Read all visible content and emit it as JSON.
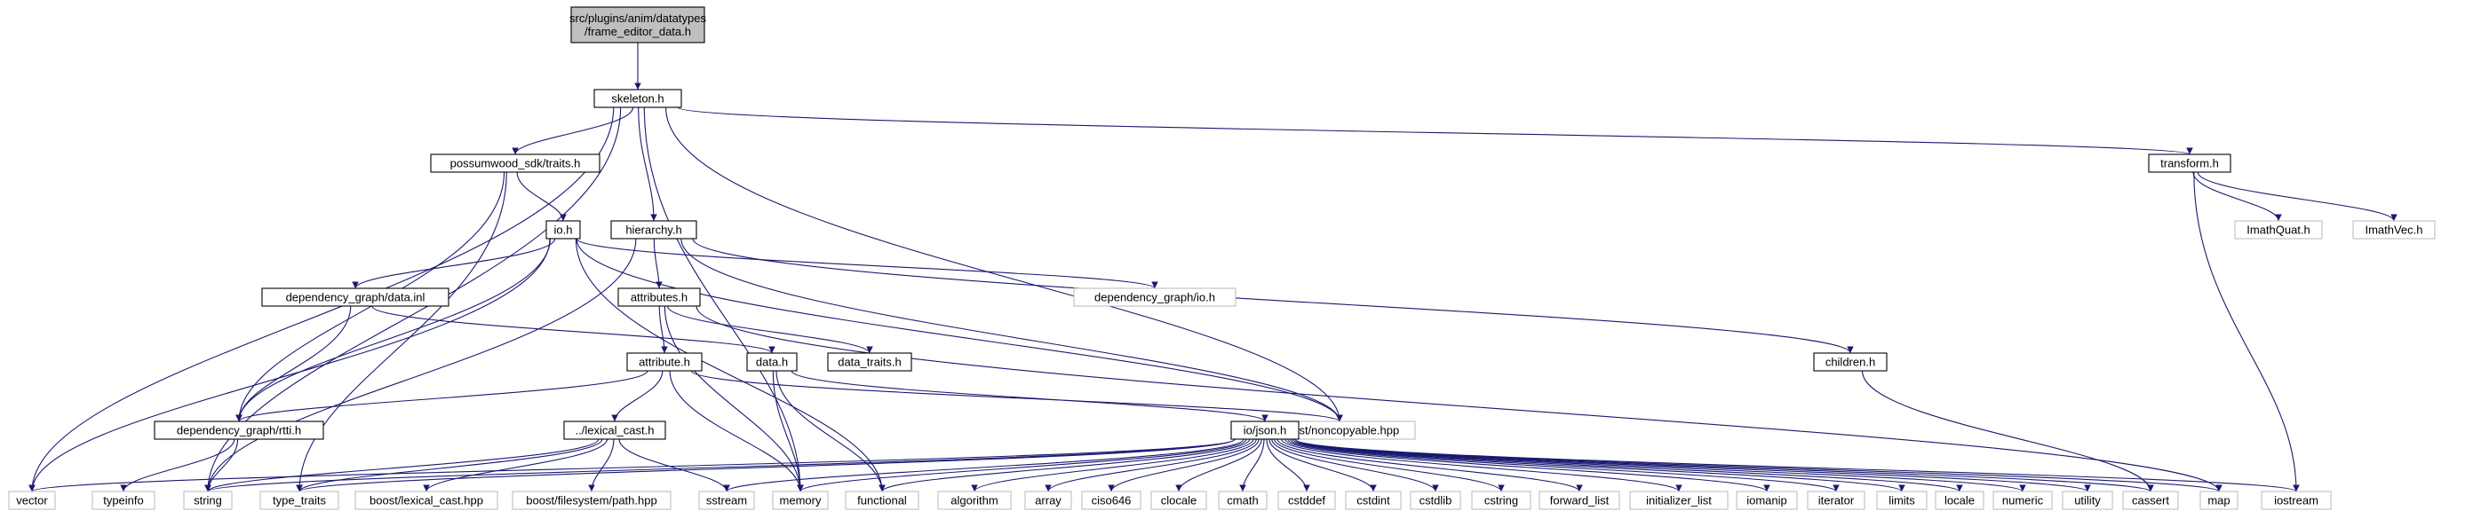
{
  "diagram": {
    "kind": "include-dependency-graph",
    "colors": {
      "edge": "#191970",
      "root_fill": "#bfbfbf",
      "node_border": "#000000",
      "external_border": "#bfbfbf",
      "background": "#ffffff"
    },
    "nodes": [
      {
        "id": "root",
        "label": "src/plugins/anim/datatypes\n/frame_editor_data.h",
        "kind": "root"
      },
      {
        "id": "skeleton",
        "label": "skeleton.h",
        "kind": "header"
      },
      {
        "id": "sdk_traits",
        "label": "possumwood_sdk/traits.h",
        "kind": "header"
      },
      {
        "id": "transform",
        "label": "transform.h",
        "kind": "header"
      },
      {
        "id": "io_h",
        "label": "io.h",
        "kind": "header"
      },
      {
        "id": "hierarchy",
        "label": "hierarchy.h",
        "kind": "header"
      },
      {
        "id": "imathquat",
        "label": "ImathQuat.h",
        "kind": "external"
      },
      {
        "id": "imathvec",
        "label": "ImathVec.h",
        "kind": "external"
      },
      {
        "id": "dg_data_inl",
        "label": "dependency_graph/data.inl",
        "kind": "header"
      },
      {
        "id": "dg_io",
        "label": "dependency_graph/io.h",
        "kind": "external"
      },
      {
        "id": "attributes",
        "label": "attributes.h",
        "kind": "header"
      },
      {
        "id": "attribute",
        "label": "attribute.h",
        "kind": "header"
      },
      {
        "id": "data_h",
        "label": "data.h",
        "kind": "header"
      },
      {
        "id": "data_traits",
        "label": "data_traits.h",
        "kind": "header"
      },
      {
        "id": "children",
        "label": "children.h",
        "kind": "header"
      },
      {
        "id": "dg_rtti",
        "label": "dependency_graph/rtti.h",
        "kind": "header"
      },
      {
        "id": "lexical_cast_h",
        "label": "../lexical_cast.h",
        "kind": "header"
      },
      {
        "id": "noncopyable",
        "label": "boost/noncopyable.hpp",
        "kind": "external"
      },
      {
        "id": "json",
        "label": "io/json.h",
        "kind": "header"
      },
      {
        "id": "vector",
        "label": "vector",
        "kind": "external"
      },
      {
        "id": "typeinfo",
        "label": "typeinfo",
        "kind": "external"
      },
      {
        "id": "string",
        "label": "string",
        "kind": "external"
      },
      {
        "id": "type_traits",
        "label": "type_traits",
        "kind": "external"
      },
      {
        "id": "boost_lexical",
        "label": "boost/lexical_cast.hpp",
        "kind": "external"
      },
      {
        "id": "boost_fs",
        "label": "boost/filesystem/path.hpp",
        "kind": "external"
      },
      {
        "id": "sstream",
        "label": "sstream",
        "kind": "external"
      },
      {
        "id": "memory",
        "label": "memory",
        "kind": "external"
      },
      {
        "id": "functional",
        "label": "functional",
        "kind": "external"
      },
      {
        "id": "algorithm",
        "label": "algorithm",
        "kind": "external"
      },
      {
        "id": "array",
        "label": "array",
        "kind": "external"
      },
      {
        "id": "ciso646",
        "label": "ciso646",
        "kind": "external"
      },
      {
        "id": "clocale",
        "label": "clocale",
        "kind": "external"
      },
      {
        "id": "cmath",
        "label": "cmath",
        "kind": "external"
      },
      {
        "id": "cstddef",
        "label": "cstddef",
        "kind": "external"
      },
      {
        "id": "cstdint",
        "label": "cstdint",
        "kind": "external"
      },
      {
        "id": "cstdlib",
        "label": "cstdlib",
        "kind": "external"
      },
      {
        "id": "cstring",
        "label": "cstring",
        "kind": "external"
      },
      {
        "id": "forward_list",
        "label": "forward_list",
        "kind": "external"
      },
      {
        "id": "initializer_list",
        "label": "initializer_list",
        "kind": "external"
      },
      {
        "id": "iomanip",
        "label": "iomanip",
        "kind": "external"
      },
      {
        "id": "iterator",
        "label": "iterator",
        "kind": "external"
      },
      {
        "id": "limits",
        "label": "limits",
        "kind": "external"
      },
      {
        "id": "locale",
        "label": "locale",
        "kind": "external"
      },
      {
        "id": "numeric",
        "label": "numeric",
        "kind": "external"
      },
      {
        "id": "utility",
        "label": "utility",
        "kind": "external"
      },
      {
        "id": "cassert",
        "label": "cassert",
        "kind": "external"
      },
      {
        "id": "map",
        "label": "map",
        "kind": "external"
      },
      {
        "id": "iostream",
        "label": "iostream",
        "kind": "external"
      }
    ],
    "edges": [
      [
        "root",
        "skeleton"
      ],
      [
        "skeleton",
        "sdk_traits"
      ],
      [
        "skeleton",
        "hierarchy"
      ],
      [
        "skeleton",
        "transform"
      ],
      [
        "skeleton",
        "vector"
      ],
      [
        "skeleton",
        "string"
      ],
      [
        "skeleton",
        "memory"
      ],
      [
        "skeleton",
        "noncopyable"
      ],
      [
        "sdk_traits",
        "io_h"
      ],
      [
        "sdk_traits",
        "dg_rtti"
      ],
      [
        "sdk_traits",
        "type_traits"
      ],
      [
        "io_h",
        "dg_data_inl"
      ],
      [
        "io_h",
        "dg_rtti"
      ],
      [
        "io_h",
        "dg_io"
      ],
      [
        "io_h",
        "noncopyable"
      ],
      [
        "io_h",
        "functional"
      ],
      [
        "io_h",
        "vector"
      ],
      [
        "hierarchy",
        "attributes"
      ],
      [
        "hierarchy",
        "children"
      ],
      [
        "hierarchy",
        "noncopyable"
      ],
      [
        "hierarchy",
        "string"
      ],
      [
        "transform",
        "imathquat"
      ],
      [
        "transform",
        "imathvec"
      ],
      [
        "transform",
        "iostream"
      ],
      [
        "dg_data_inl",
        "dg_rtti"
      ],
      [
        "dg_data_inl",
        "data_h"
      ],
      [
        "attributes",
        "attribute"
      ],
      [
        "attributes",
        "data_traits"
      ],
      [
        "attributes",
        "map"
      ],
      [
        "attributes",
        "memory"
      ],
      [
        "attribute",
        "lexical_cast_h"
      ],
      [
        "attribute",
        "dg_rtti"
      ],
      [
        "attribute",
        "noncopyable"
      ],
      [
        "attribute",
        "memory"
      ],
      [
        "data_h",
        "memory"
      ],
      [
        "data_h",
        "functional"
      ],
      [
        "data_h",
        "json"
      ],
      [
        "children",
        "cassert"
      ],
      [
        "dg_rtti",
        "typeinfo"
      ],
      [
        "dg_rtti",
        "string"
      ],
      [
        "lexical_cast_h",
        "string"
      ],
      [
        "lexical_cast_h",
        "type_traits"
      ],
      [
        "lexical_cast_h",
        "boost_lexical"
      ],
      [
        "lexical_cast_h",
        "boost_fs"
      ],
      [
        "lexical_cast_h",
        "sstream"
      ],
      [
        "json",
        "vector"
      ],
      [
        "json",
        "string"
      ],
      [
        "json",
        "type_traits"
      ],
      [
        "json",
        "sstream"
      ],
      [
        "json",
        "memory"
      ],
      [
        "json",
        "functional"
      ],
      [
        "json",
        "algorithm"
      ],
      [
        "json",
        "array"
      ],
      [
        "json",
        "ciso646"
      ],
      [
        "json",
        "clocale"
      ],
      [
        "json",
        "cmath"
      ],
      [
        "json",
        "cstddef"
      ],
      [
        "json",
        "cstdint"
      ],
      [
        "json",
        "cstdlib"
      ],
      [
        "json",
        "cstring"
      ],
      [
        "json",
        "forward_list"
      ],
      [
        "json",
        "initializer_list"
      ],
      [
        "json",
        "iomanip"
      ],
      [
        "json",
        "iterator"
      ],
      [
        "json",
        "limits"
      ],
      [
        "json",
        "locale"
      ],
      [
        "json",
        "numeric"
      ],
      [
        "json",
        "utility"
      ],
      [
        "json",
        "cassert"
      ],
      [
        "json",
        "map"
      ],
      [
        "json",
        "iostream"
      ]
    ]
  }
}
